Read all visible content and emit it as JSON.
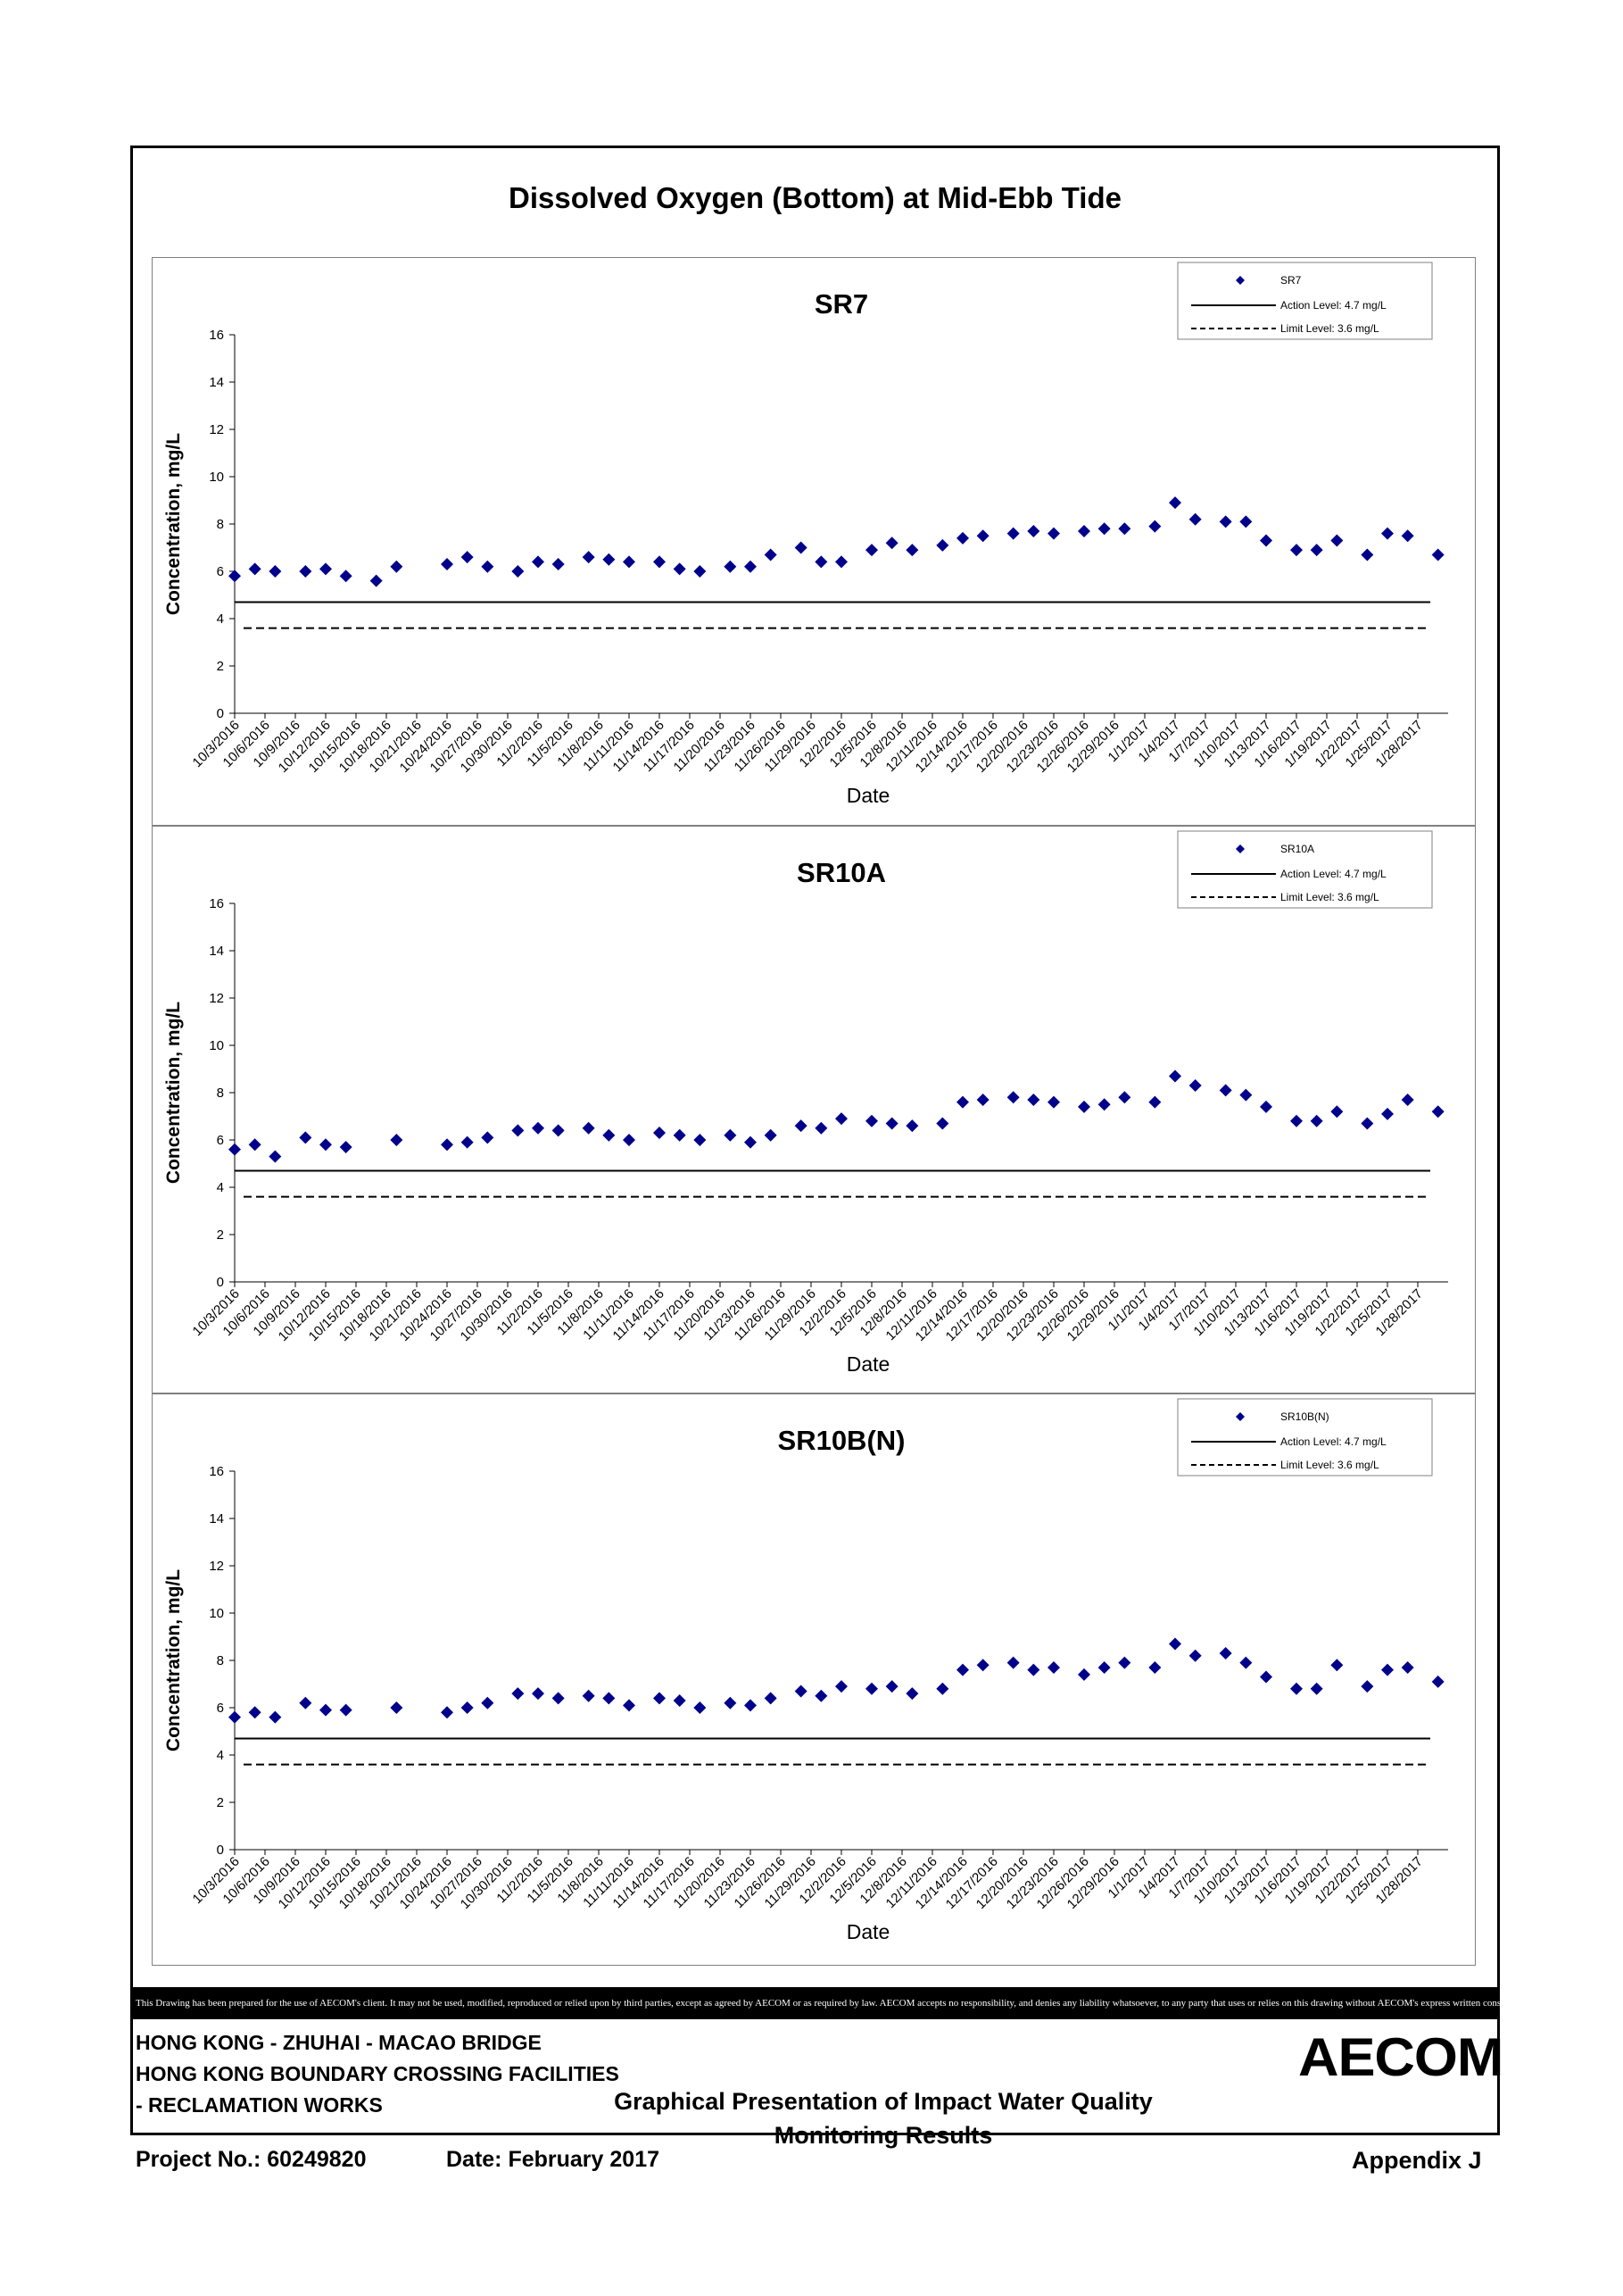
{
  "page": {
    "main_title": "Dissolved Oxygen (Bottom) at Mid-Ebb Tide",
    "disclaimer": "This Drawing has been prepared for the use of AECOM's client. It may not be used, modified, reproduced or relied upon by third parties, except as agreed by AECOM or as required by law. AECOM accepts no responsibility, and denies any liability whatsoever, to any party that uses or relies on this drawing without AECOM's express written consent.",
    "project_line1": "HONG KONG - ZHUHAI - MACAO BRIDGE",
    "project_line2": "HONG KONG BOUNDARY CROSSING FACILITIES",
    "project_line3": "- RECLAMATION WORKS",
    "subtitle_line1": "Graphical Presentation of Impact Water Quality",
    "subtitle_line2": "Monitoring Results",
    "project_no": "Project No.: 60249820",
    "date": "Date: February 2017",
    "appendix": "Appendix J",
    "logo": "AECOM"
  },
  "colors": {
    "marker": "#00008B",
    "line": "#000000",
    "panel_border": "#808080"
  },
  "chart_data": [
    {
      "type": "scatter",
      "title": "SR7",
      "xlabel": "Date",
      "ylabel": "Concentration, mg/L",
      "ylim": [
        0,
        16
      ],
      "yticks": [
        0,
        2,
        4,
        6,
        8,
        10,
        12,
        14,
        16
      ],
      "xlim": [
        "10/3/2016",
        "1/31/2017"
      ],
      "xtick_labels": [
        "10/3/2016",
        "10/6/2016",
        "10/9/2016",
        "10/12/2016",
        "10/15/2016",
        "10/18/2016",
        "10/21/2016",
        "10/24/2016",
        "10/27/2016",
        "10/30/2016",
        "11/2/2016",
        "11/5/2016",
        "11/8/2016",
        "11/11/2016",
        "11/14/2016",
        "11/17/2016",
        "11/20/2016",
        "11/23/2016",
        "11/26/2016",
        "11/29/2016",
        "12/2/2016",
        "12/5/2016",
        "12/8/2016",
        "12/11/2016",
        "12/14/2016",
        "12/17/2016",
        "12/20/2016",
        "12/23/2016",
        "12/26/2016",
        "12/29/2016",
        "1/1/2017",
        "1/4/2017",
        "1/7/2017",
        "1/10/2017",
        "1/13/2017",
        "1/16/2017",
        "1/19/2017",
        "1/22/2017",
        "1/25/2017",
        "1/28/2017"
      ],
      "legend": {
        "position": "top-right",
        "series_label": "SR7",
        "action_label": "Action Level: 4.7 mg/L",
        "limit_label": "Limit Level: 3.6 mg/L"
      },
      "action_level": 4.7,
      "limit_level": 3.6,
      "series": [
        {
          "name": "SR7",
          "points": [
            [
              "10/3/2016",
              5.8
            ],
            [
              "10/5/2016",
              6.1
            ],
            [
              "10/7/2016",
              6.0
            ],
            [
              "10/10/2016",
              6.0
            ],
            [
              "10/12/2016",
              6.1
            ],
            [
              "10/14/2016",
              5.8
            ],
            [
              "10/17/2016",
              5.6
            ],
            [
              "10/19/2016",
              6.2
            ],
            [
              "10/24/2016",
              6.3
            ],
            [
              "10/26/2016",
              6.6
            ],
            [
              "10/28/2016",
              6.2
            ],
            [
              "10/31/2016",
              6.0
            ],
            [
              "11/2/2016",
              6.4
            ],
            [
              "11/4/2016",
              6.3
            ],
            [
              "11/7/2016",
              6.6
            ],
            [
              "11/9/2016",
              6.5
            ],
            [
              "11/11/2016",
              6.4
            ],
            [
              "11/14/2016",
              6.4
            ],
            [
              "11/16/2016",
              6.1
            ],
            [
              "11/18/2016",
              6.0
            ],
            [
              "11/21/2016",
              6.2
            ],
            [
              "11/23/2016",
              6.2
            ],
            [
              "11/25/2016",
              6.7
            ],
            [
              "11/28/2016",
              7.0
            ],
            [
              "11/30/2016",
              6.4
            ],
            [
              "12/2/2016",
              6.4
            ],
            [
              "12/5/2016",
              6.9
            ],
            [
              "12/7/2016",
              7.2
            ],
            [
              "12/9/2016",
              6.9
            ],
            [
              "12/12/2016",
              7.1
            ],
            [
              "12/14/2016",
              7.4
            ],
            [
              "12/16/2016",
              7.5
            ],
            [
              "12/19/2016",
              7.6
            ],
            [
              "12/21/2016",
              7.7
            ],
            [
              "12/23/2016",
              7.6
            ],
            [
              "12/26/2016",
              7.7
            ],
            [
              "12/28/2016",
              7.8
            ],
            [
              "12/30/2016",
              7.8
            ],
            [
              "1/2/2017",
              7.9
            ],
            [
              "1/4/2017",
              8.9
            ],
            [
              "1/6/2017",
              8.2
            ],
            [
              "1/9/2017",
              8.1
            ],
            [
              "1/11/2017",
              8.1
            ],
            [
              "1/13/2017",
              7.3
            ],
            [
              "1/16/2017",
              6.9
            ],
            [
              "1/18/2017",
              6.9
            ],
            [
              "1/20/2017",
              7.3
            ],
            [
              "1/23/2017",
              6.7
            ],
            [
              "1/25/2017",
              7.6
            ],
            [
              "1/27/2017",
              7.5
            ],
            [
              "1/30/2017",
              6.7
            ]
          ]
        }
      ]
    },
    {
      "type": "scatter",
      "title": "SR10A",
      "xlabel": "Date",
      "ylabel": "Concentration, mg/L",
      "ylim": [
        0,
        16
      ],
      "yticks": [
        0,
        2,
        4,
        6,
        8,
        10,
        12,
        14,
        16
      ],
      "xlim": [
        "10/3/2016",
        "1/31/2017"
      ],
      "xtick_labels": [
        "10/3/2016",
        "10/6/2016",
        "10/9/2016",
        "10/12/2016",
        "10/15/2016",
        "10/18/2016",
        "10/21/2016",
        "10/24/2016",
        "10/27/2016",
        "10/30/2016",
        "11/2/2016",
        "11/5/2016",
        "11/8/2016",
        "11/11/2016",
        "11/14/2016",
        "11/17/2016",
        "11/20/2016",
        "11/23/2016",
        "11/26/2016",
        "11/29/2016",
        "12/2/2016",
        "12/5/2016",
        "12/8/2016",
        "12/11/2016",
        "12/14/2016",
        "12/17/2016",
        "12/20/2016",
        "12/23/2016",
        "12/26/2016",
        "12/29/2016",
        "1/1/2017",
        "1/4/2017",
        "1/7/2017",
        "1/10/2017",
        "1/13/2017",
        "1/16/2017",
        "1/19/2017",
        "1/22/2017",
        "1/25/2017",
        "1/28/2017"
      ],
      "legend": {
        "position": "top-right",
        "series_label": "SR10A",
        "action_label": "Action Level: 4.7 mg/L",
        "limit_label": "Limit Level: 3.6 mg/L"
      },
      "action_level": 4.7,
      "limit_level": 3.6,
      "series": [
        {
          "name": "SR10A",
          "points": [
            [
              "10/3/2016",
              5.6
            ],
            [
              "10/5/2016",
              5.8
            ],
            [
              "10/7/2016",
              5.3
            ],
            [
              "10/10/2016",
              6.1
            ],
            [
              "10/12/2016",
              5.8
            ],
            [
              "10/14/2016",
              5.7
            ],
            [
              "10/19/2016",
              6.0
            ],
            [
              "10/24/2016",
              5.8
            ],
            [
              "10/26/2016",
              5.9
            ],
            [
              "10/28/2016",
              6.1
            ],
            [
              "10/31/2016",
              6.4
            ],
            [
              "11/2/2016",
              6.5
            ],
            [
              "11/4/2016",
              6.4
            ],
            [
              "11/7/2016",
              6.5
            ],
            [
              "11/9/2016",
              6.2
            ],
            [
              "11/11/2016",
              6.0
            ],
            [
              "11/14/2016",
              6.3
            ],
            [
              "11/16/2016",
              6.2
            ],
            [
              "11/18/2016",
              6.0
            ],
            [
              "11/21/2016",
              6.2
            ],
            [
              "11/23/2016",
              5.9
            ],
            [
              "11/25/2016",
              6.2
            ],
            [
              "11/28/2016",
              6.6
            ],
            [
              "11/30/2016",
              6.5
            ],
            [
              "12/2/2016",
              6.9
            ],
            [
              "12/5/2016",
              6.8
            ],
            [
              "12/7/2016",
              6.7
            ],
            [
              "12/9/2016",
              6.6
            ],
            [
              "12/12/2016",
              6.7
            ],
            [
              "12/14/2016",
              7.6
            ],
            [
              "12/16/2016",
              7.7
            ],
            [
              "12/19/2016",
              7.8
            ],
            [
              "12/21/2016",
              7.7
            ],
            [
              "12/23/2016",
              7.6
            ],
            [
              "12/26/2016",
              7.4
            ],
            [
              "12/28/2016",
              7.5
            ],
            [
              "12/30/2016",
              7.8
            ],
            [
              "1/2/2017",
              7.6
            ],
            [
              "1/4/2017",
              8.7
            ],
            [
              "1/6/2017",
              8.3
            ],
            [
              "1/9/2017",
              8.1
            ],
            [
              "1/11/2017",
              7.9
            ],
            [
              "1/13/2017",
              7.4
            ],
            [
              "1/16/2017",
              6.8
            ],
            [
              "1/18/2017",
              6.8
            ],
            [
              "1/20/2017",
              7.2
            ],
            [
              "1/23/2017",
              6.7
            ],
            [
              "1/25/2017",
              7.1
            ],
            [
              "1/27/2017",
              7.7
            ],
            [
              "1/30/2017",
              7.2
            ]
          ]
        }
      ]
    },
    {
      "type": "scatter",
      "title": "SR10B(N)",
      "xlabel": "Date",
      "ylabel": "Concentration, mg/L",
      "ylim": [
        0,
        16
      ],
      "yticks": [
        0,
        2,
        4,
        6,
        8,
        10,
        12,
        14,
        16
      ],
      "xlim": [
        "10/3/2016",
        "1/31/2017"
      ],
      "xtick_labels": [
        "10/3/2016",
        "10/6/2016",
        "10/9/2016",
        "10/12/2016",
        "10/15/2016",
        "10/18/2016",
        "10/21/2016",
        "10/24/2016",
        "10/27/2016",
        "10/30/2016",
        "11/2/2016",
        "11/5/2016",
        "11/8/2016",
        "11/11/2016",
        "11/14/2016",
        "11/17/2016",
        "11/20/2016",
        "11/23/2016",
        "11/26/2016",
        "11/29/2016",
        "12/2/2016",
        "12/5/2016",
        "12/8/2016",
        "12/11/2016",
        "12/14/2016",
        "12/17/2016",
        "12/20/2016",
        "12/23/2016",
        "12/26/2016",
        "12/29/2016",
        "1/1/2017",
        "1/4/2017",
        "1/7/2017",
        "1/10/2017",
        "1/13/2017",
        "1/16/2017",
        "1/19/2017",
        "1/22/2017",
        "1/25/2017",
        "1/28/2017"
      ],
      "legend": {
        "position": "top-right",
        "series_label": "SR10B(N)",
        "action_label": "Action Level: 4.7 mg/L",
        "limit_label": "Limit Level: 3.6 mg/L"
      },
      "action_level": 4.7,
      "limit_level": 3.6,
      "series": [
        {
          "name": "SR10B(N)",
          "points": [
            [
              "10/3/2016",
              5.6
            ],
            [
              "10/5/2016",
              5.8
            ],
            [
              "10/7/2016",
              5.6
            ],
            [
              "10/10/2016",
              6.2
            ],
            [
              "10/12/2016",
              5.9
            ],
            [
              "10/14/2016",
              5.9
            ],
            [
              "10/19/2016",
              6.0
            ],
            [
              "10/24/2016",
              5.8
            ],
            [
              "10/26/2016",
              6.0
            ],
            [
              "10/28/2016",
              6.2
            ],
            [
              "10/31/2016",
              6.6
            ],
            [
              "11/2/2016",
              6.6
            ],
            [
              "11/4/2016",
              6.4
            ],
            [
              "11/7/2016",
              6.5
            ],
            [
              "11/9/2016",
              6.4
            ],
            [
              "11/11/2016",
              6.1
            ],
            [
              "11/14/2016",
              6.4
            ],
            [
              "11/16/2016",
              6.3
            ],
            [
              "11/18/2016",
              6.0
            ],
            [
              "11/21/2016",
              6.2
            ],
            [
              "11/23/2016",
              6.1
            ],
            [
              "11/25/2016",
              6.4
            ],
            [
              "11/28/2016",
              6.7
            ],
            [
              "11/30/2016",
              6.5
            ],
            [
              "12/2/2016",
              6.9
            ],
            [
              "12/5/2016",
              6.8
            ],
            [
              "12/7/2016",
              6.9
            ],
            [
              "12/9/2016",
              6.6
            ],
            [
              "12/12/2016",
              6.8
            ],
            [
              "12/14/2016",
              7.6
            ],
            [
              "12/16/2016",
              7.8
            ],
            [
              "12/19/2016",
              7.9
            ],
            [
              "12/21/2016",
              7.6
            ],
            [
              "12/23/2016",
              7.7
            ],
            [
              "12/26/2016",
              7.4
            ],
            [
              "12/28/2016",
              7.7
            ],
            [
              "12/30/2016",
              7.9
            ],
            [
              "1/2/2017",
              7.7
            ],
            [
              "1/4/2017",
              8.7
            ],
            [
              "1/6/2017",
              8.2
            ],
            [
              "1/9/2017",
              8.3
            ],
            [
              "1/11/2017",
              7.9
            ],
            [
              "1/13/2017",
              7.3
            ],
            [
              "1/16/2017",
              6.8
            ],
            [
              "1/18/2017",
              6.8
            ],
            [
              "1/20/2017",
              7.8
            ],
            [
              "1/23/2017",
              6.9
            ],
            [
              "1/25/2017",
              7.6
            ],
            [
              "1/27/2017",
              7.7
            ],
            [
              "1/30/2017",
              7.1
            ]
          ]
        }
      ]
    }
  ]
}
